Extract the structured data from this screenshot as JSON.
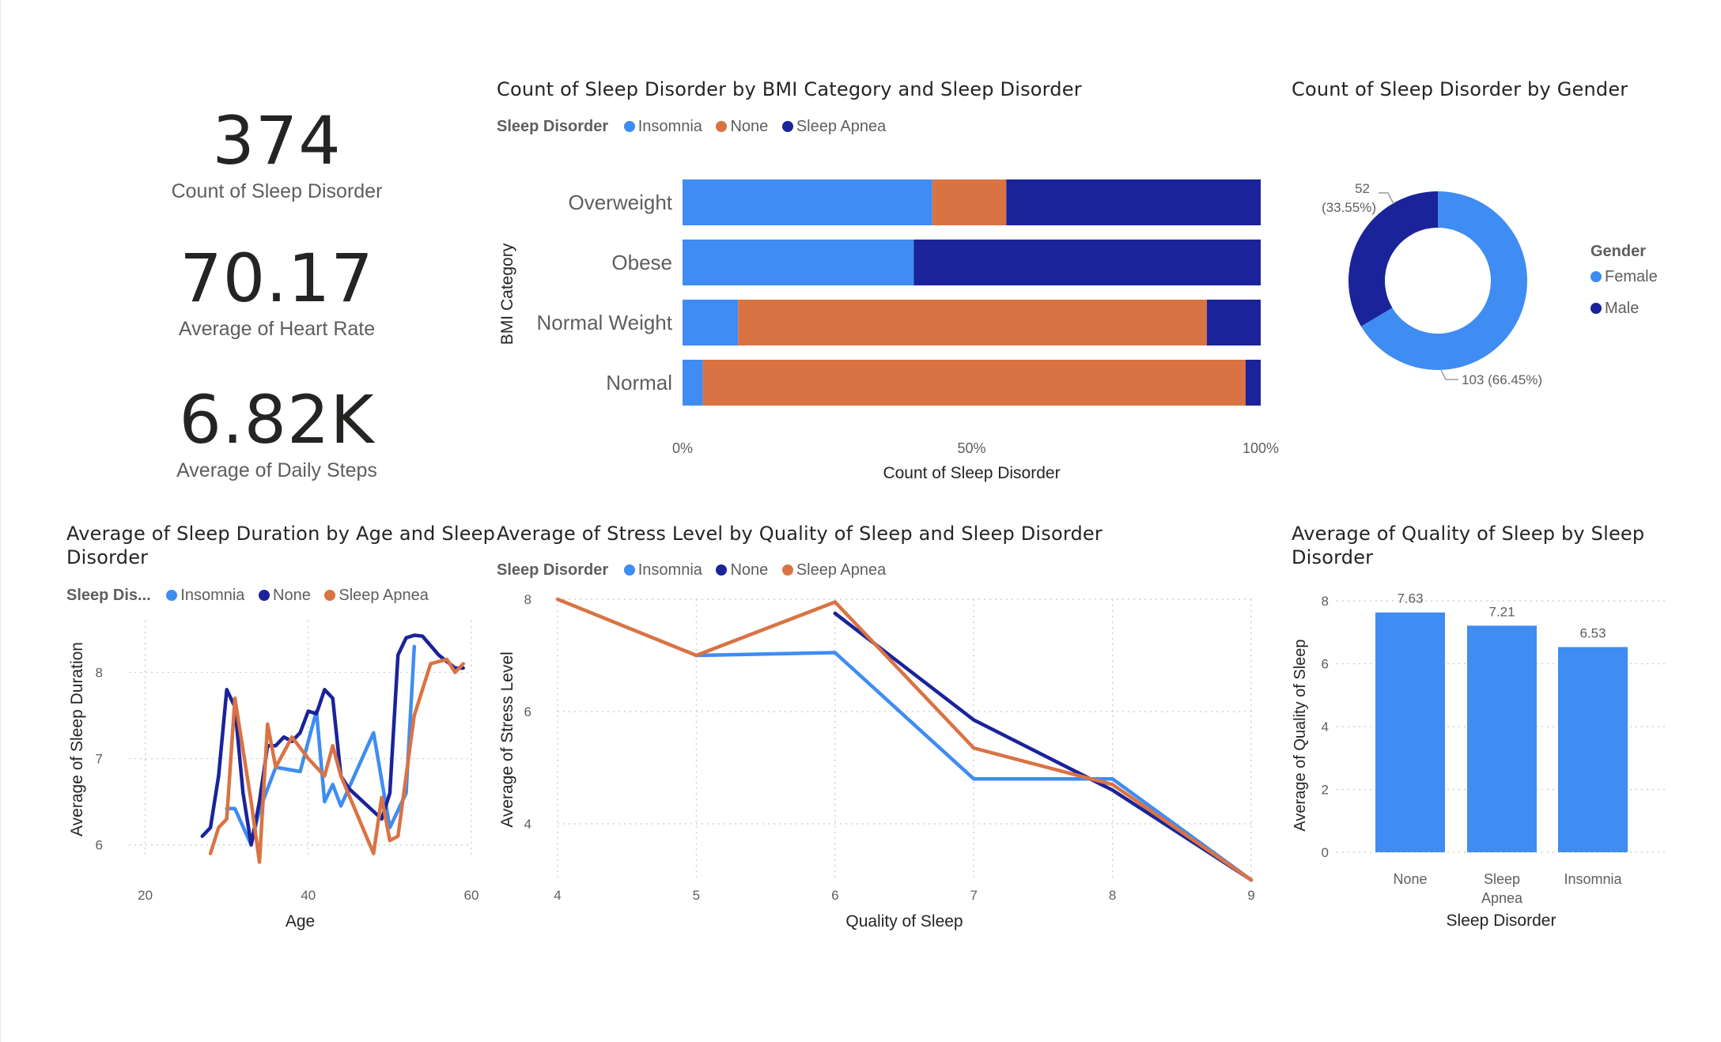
{
  "colors": {
    "insomnia": "#3F8CF2",
    "none_orange": "#D97344",
    "apnea_navy": "#1A2399",
    "text": "#252423",
    "muted": "#605e5c"
  },
  "kpis": [
    {
      "value": "374",
      "label": "Count of Sleep Disorder"
    },
    {
      "value": "70.17",
      "label": "Average of Heart Rate"
    },
    {
      "value": "6.82K",
      "label": "Average of Daily Steps"
    }
  ],
  "bmi_chart": {
    "title": "Count of Sleep Disorder by BMI Category and Sleep Disorder",
    "legend_title": "Sleep Disorder",
    "legend": [
      "Insomnia",
      "None",
      "Sleep Apnea"
    ],
    "ylabel": "BMI Category",
    "xlabel": "Count of Sleep Disorder",
    "ticks": [
      "0%",
      "50%",
      "100%"
    ]
  },
  "gender_chart": {
    "title": "Count of Sleep Disorder by Gender",
    "legend_title": "Gender",
    "legend": [
      "Female",
      "Male"
    ],
    "label_male_count": "52",
    "label_male_pct": "(33.55%)",
    "label_female": "103 (66.45%)"
  },
  "age_chart": {
    "title_line1": "Average of Sleep Duration by Age and Sleep",
    "title_line2": "Disorder",
    "legend_title": "Sleep Dis...",
    "legend": [
      "Insomnia",
      "None",
      "Sleep Apnea"
    ],
    "xlabel": "Age",
    "ylabel": "Average of Sleep Duration"
  },
  "stress_chart": {
    "title": "Average of Stress Level by Quality of Sleep and Sleep Disorder",
    "legend_title": "Sleep Disorder",
    "legend": [
      "Insomnia",
      "None",
      "Sleep Apnea"
    ],
    "xlabel": "Quality of Sleep",
    "ylabel": "Average of Stress Level"
  },
  "quality_chart": {
    "title_line1": "Average of Quality of Sleep by Sleep",
    "title_line2": "Disorder",
    "xlabel": "Sleep Disorder",
    "ylabel": "Average of Quality of Sleep"
  },
  "chart_data": [
    {
      "type": "bar",
      "orientation": "horizontal-stacked-100",
      "categories": [
        "Overweight",
        "Obese",
        "Normal Weight",
        "Normal"
      ],
      "series": [
        {
          "name": "Insomnia",
          "values": [
            43.2,
            40.0,
            9.6,
            3.5
          ]
        },
        {
          "name": "None",
          "values": [
            12.8,
            0.0,
            81.1,
            93.9
          ]
        },
        {
          "name": "Sleep Apnea",
          "values": [
            44.0,
            60.0,
            9.3,
            2.6
          ]
        }
      ],
      "xlim": [
        0,
        100
      ]
    },
    {
      "type": "pie",
      "donut": true,
      "categories": [
        "Female",
        "Male"
      ],
      "values": [
        103,
        52
      ],
      "percents": [
        66.45,
        33.55
      ]
    },
    {
      "type": "line",
      "x_ticks": [
        20,
        40,
        60
      ],
      "y_ticks": [
        6,
        7,
        8
      ],
      "xlim": [
        18,
        60
      ],
      "ylim": [
        5.85,
        8.6
      ],
      "series": [
        {
          "name": "Insomnia",
          "points": [
            [
              30,
              6.42
            ],
            [
              31,
              6.42
            ],
            [
              33,
              6.0
            ],
            [
              34,
              6.4
            ],
            [
              36,
              6.9
            ],
            [
              39,
              6.85
            ],
            [
              41,
              7.55
            ],
            [
              42,
              6.5
            ],
            [
              43,
              6.7
            ],
            [
              44,
              6.45
            ],
            [
              48,
              7.3
            ],
            [
              50,
              6.2
            ],
            [
              52,
              6.6
            ],
            [
              53,
              8.3
            ]
          ]
        },
        {
          "name": "None",
          "points": [
            [
              27,
              6.1
            ],
            [
              28,
              6.2
            ],
            [
              29,
              6.8
            ],
            [
              30,
              7.8
            ],
            [
              31,
              7.6
            ],
            [
              32,
              6.6
            ],
            [
              33,
              6.0
            ],
            [
              34,
              6.5
            ],
            [
              35,
              7.15
            ],
            [
              36,
              7.15
            ],
            [
              37,
              7.25
            ],
            [
              38,
              7.2
            ],
            [
              39,
              7.3
            ],
            [
              40,
              7.55
            ],
            [
              41,
              7.52
            ],
            [
              42,
              7.8
            ],
            [
              43,
              7.7
            ],
            [
              44,
              6.8
            ],
            [
              45,
              6.65
            ],
            [
              49,
              6.3
            ],
            [
              50,
              6.6
            ],
            [
              51,
              8.2
            ],
            [
              52,
              8.4
            ],
            [
              53,
              8.43
            ],
            [
              54,
              8.42
            ],
            [
              56,
              8.2
            ],
            [
              58,
              8.05
            ],
            [
              59,
              8.05
            ]
          ]
        },
        {
          "name": "Sleep Apnea",
          "points": [
            [
              28,
              5.9
            ],
            [
              29,
              6.2
            ],
            [
              30,
              6.3
            ],
            [
              31,
              7.7
            ],
            [
              33,
              6.5
            ],
            [
              34,
              5.8
            ],
            [
              35,
              7.4
            ],
            [
              36,
              6.9
            ],
            [
              38,
              7.25
            ],
            [
              40,
              7.0
            ],
            [
              41,
              6.9
            ],
            [
              42,
              6.8
            ],
            [
              43,
              7.15
            ],
            [
              44,
              6.8
            ],
            [
              48,
              5.9
            ],
            [
              49,
              6.55
            ],
            [
              50,
              6.05
            ],
            [
              51,
              6.1
            ],
            [
              53,
              7.5
            ],
            [
              55,
              8.1
            ],
            [
              57,
              8.15
            ],
            [
              58,
              8.0
            ],
            [
              59,
              8.1
            ]
          ]
        }
      ]
    },
    {
      "type": "line",
      "x_ticks": [
        4,
        5,
        6,
        7,
        8,
        9
      ],
      "y_ticks": [
        4,
        6,
        8
      ],
      "xlim": [
        4,
        9
      ],
      "ylim": [
        3.0,
        8.0
      ],
      "series": [
        {
          "name": "Insomnia",
          "points": [
            [
              5,
              7.0
            ],
            [
              6,
              7.05
            ],
            [
              7,
              4.8
            ],
            [
              8,
              4.8
            ],
            [
              9,
              3.0
            ]
          ]
        },
        {
          "name": "None",
          "points": [
            [
              6,
              7.75
            ],
            [
              7,
              5.85
            ],
            [
              8,
              4.6
            ],
            [
              9,
              3.0
            ]
          ]
        },
        {
          "name": "Sleep Apnea",
          "points": [
            [
              4,
              8.0
            ],
            [
              5,
              7.0
            ],
            [
              6,
              7.95
            ],
            [
              7,
              5.35
            ],
            [
              8,
              4.7
            ],
            [
              9,
              3.0
            ]
          ]
        }
      ]
    },
    {
      "type": "bar",
      "categories": [
        "None",
        "Sleep Apnea",
        "Insomnia"
      ],
      "category_lines": [
        [
          "None"
        ],
        [
          "Sleep",
          "Apnea"
        ],
        [
          "Insomnia"
        ]
      ],
      "values": [
        7.63,
        7.21,
        6.53
      ],
      "labels": [
        "7.63",
        "7.21",
        "6.53"
      ],
      "y_ticks": [
        0,
        2,
        4,
        6,
        8
      ],
      "ylim": [
        0,
        8
      ]
    }
  ]
}
